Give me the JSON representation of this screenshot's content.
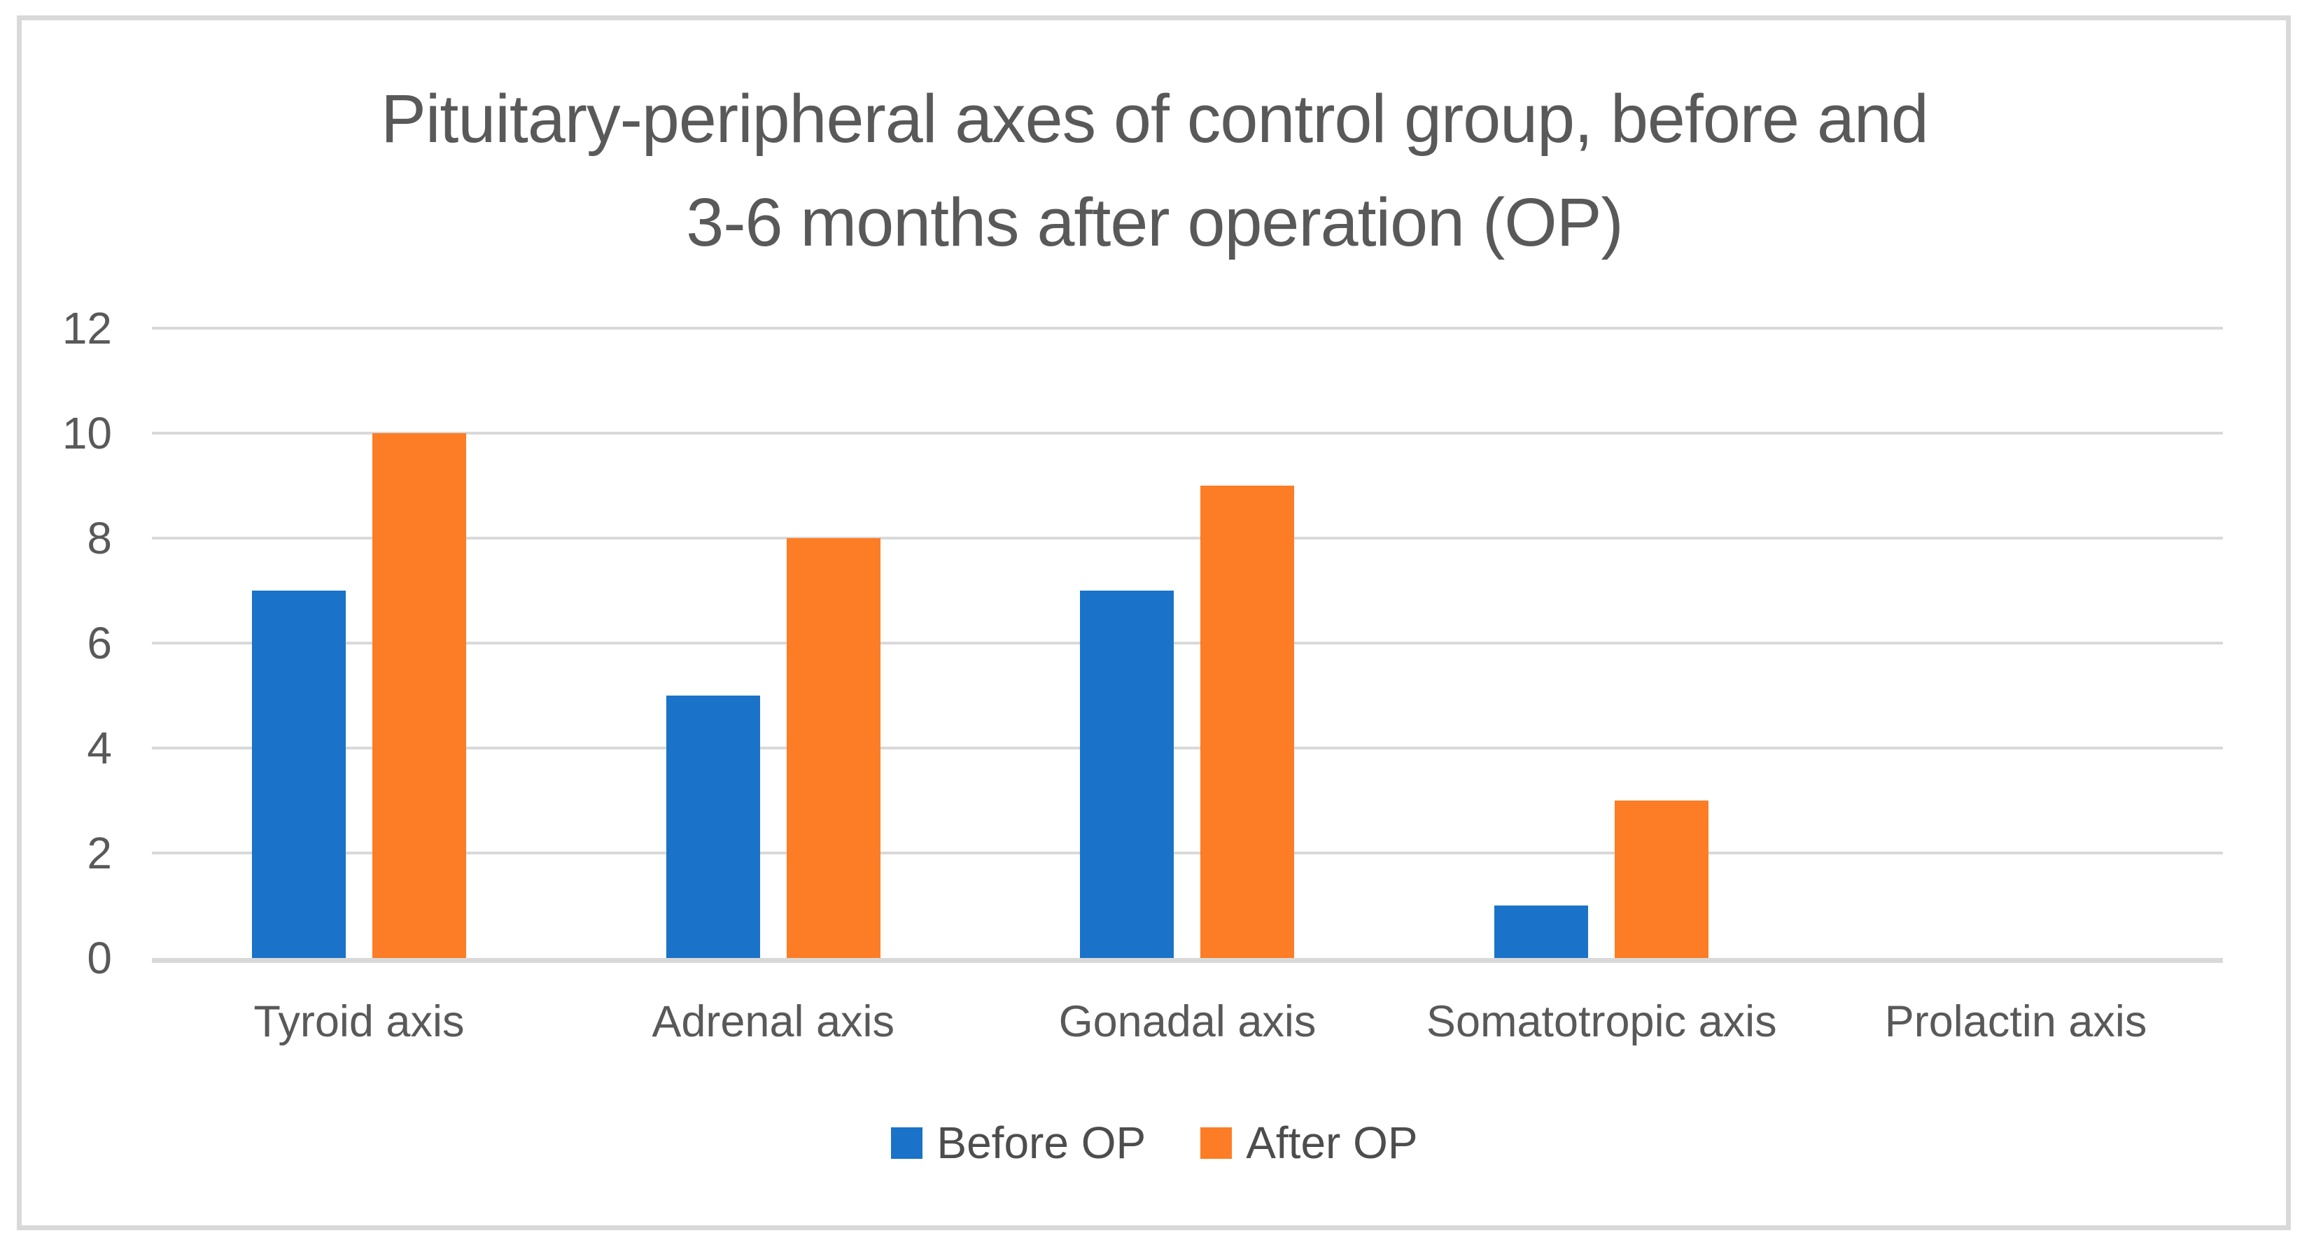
{
  "figure": {
    "background_color": "#FFFFFF",
    "border_color": "#D9D9D9"
  },
  "colors": {
    "text": "#595959",
    "legend_text": "#4d4d4d",
    "gridline": "#D9D9D9",
    "before_op_blue": "#1A73C8",
    "after_op_orange": "#FC7D25"
  },
  "chart_data": {
    "type": "bar",
    "title": "Pituitary-peripheral axes of control group, before and 3-6 months after operation (OP)",
    "title_lines": [
      "Pituitary-peripheral axes of control group, before and",
      "3-6 months after operation (OP)"
    ],
    "xlabel": "",
    "ylabel": "",
    "categories": [
      "Tyroid axis",
      "Adrenal axis",
      "Gonadal axis",
      "Somatotropic axis",
      "Prolactin axis"
    ],
    "series": [
      {
        "name": "Before OP",
        "color": "#1A73C8",
        "values": [
          7,
          5,
          7,
          1,
          0
        ]
      },
      {
        "name": "After OP",
        "color": "#FC7D25",
        "values": [
          10,
          8,
          9,
          3,
          0
        ]
      }
    ],
    "ylim": [
      0,
      12
    ],
    "yticks": [
      0,
      2,
      4,
      6,
      8,
      10,
      12
    ],
    "grid": "horizontal",
    "legend_position": "bottom"
  }
}
